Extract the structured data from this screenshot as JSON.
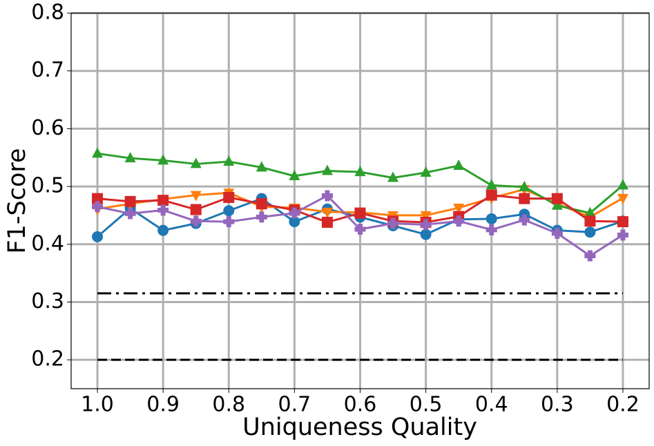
{
  "chart_data": {
    "type": "line",
    "xlabel": "Uniqueness Quality",
    "ylabel": "F1-Score",
    "x": [
      1.0,
      0.95,
      0.9,
      0.85,
      0.8,
      0.75,
      0.7,
      0.65,
      0.6,
      0.55,
      0.5,
      0.45,
      0.4,
      0.35,
      0.3,
      0.25,
      0.2
    ],
    "xlim": [
      1.04,
      0.16
    ],
    "xticks": [
      {
        "value": 1.0,
        "label": "1.0"
      },
      0.9,
      0.8,
      0.7,
      0.6,
      0.5,
      0.4,
      0.3,
      0.2
    ],
    "ylim": [
      0.15,
      0.8
    ],
    "yticks": [
      0.2,
      0.3,
      0.4,
      0.5,
      0.6,
      0.7,
      0.8
    ],
    "grid": true,
    "series": [
      {
        "color": "#1f77b4",
        "marker": "circle",
        "values": [
          0.413,
          0.462,
          0.424,
          0.436,
          0.458,
          0.479,
          0.439,
          0.461,
          0.447,
          0.432,
          0.417,
          0.443,
          0.444,
          0.452,
          0.424,
          0.421,
          0.44
        ]
      },
      {
        "color": "#ff7f0e",
        "marker": "triangle-down",
        "values": [
          0.461,
          0.47,
          0.478,
          0.485,
          0.489,
          0.465,
          0.463,
          0.456,
          0.455,
          0.45,
          0.45,
          0.463,
          0.48,
          0.495,
          0.47,
          0.447,
          0.48
        ]
      },
      {
        "color": "#2ca02c",
        "marker": "triangle-up",
        "values": [
          0.557,
          0.549,
          0.545,
          0.539,
          0.543,
          0.533,
          0.518,
          0.527,
          0.525,
          0.515,
          0.524,
          0.536,
          0.502,
          0.499,
          0.467,
          0.454,
          0.502
        ]
      },
      {
        "color": "#d62728",
        "marker": "square",
        "values": [
          0.479,
          0.474,
          0.476,
          0.46,
          0.481,
          0.47,
          0.459,
          0.438,
          0.454,
          0.44,
          0.438,
          0.448,
          0.485,
          0.479,
          0.479,
          0.44,
          0.439
        ]
      },
      {
        "color": "#9467bd",
        "marker": "plus",
        "values": [
          0.465,
          0.453,
          0.459,
          0.44,
          0.439,
          0.447,
          0.454,
          0.484,
          0.426,
          0.436,
          0.434,
          0.44,
          0.425,
          0.442,
          0.419,
          0.38,
          0.416
        ]
      }
    ],
    "hlines": [
      {
        "value": 0.315,
        "style": "dashdot",
        "color": "#000000"
      },
      {
        "value": 0.2,
        "style": "dashed",
        "color": "#000000"
      }
    ]
  }
}
